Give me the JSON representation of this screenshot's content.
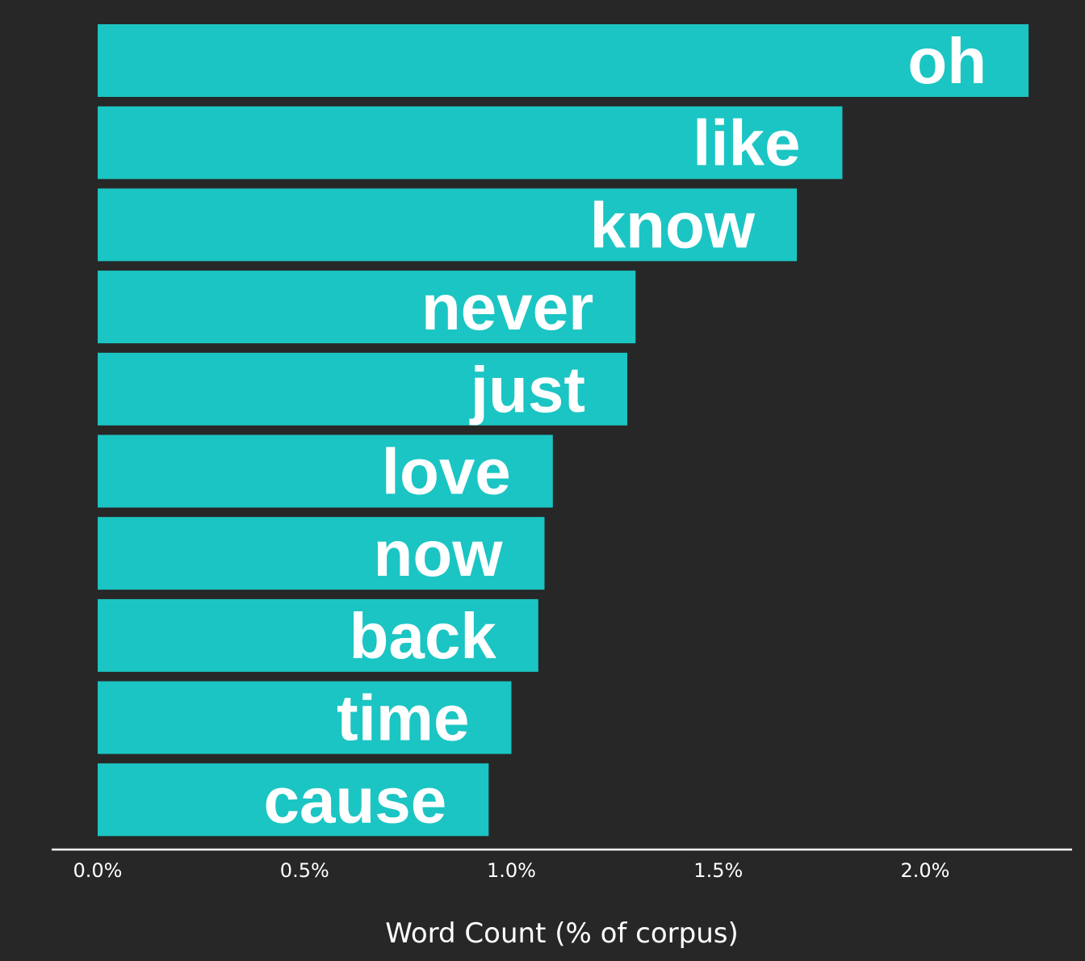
{
  "chart_data": {
    "type": "bar",
    "orientation": "horizontal",
    "categories": [
      "oh",
      "like",
      "know",
      "never",
      "just",
      "love",
      "now",
      "back",
      "time",
      "cause"
    ],
    "values": [
      2.25,
      1.8,
      1.69,
      1.3,
      1.28,
      1.1,
      1.08,
      1.065,
      1.0,
      0.945
    ],
    "value_unit": "% of corpus",
    "xlabel": "Word Count (% of corpus)",
    "ylabel": "",
    "xlim": [
      0,
      2.36
    ],
    "xticks": [
      0.0,
      0.5,
      1.0,
      1.5,
      2.0
    ],
    "xtick_labels": [
      "0.0%",
      "0.5%",
      "1.0%",
      "1.5%",
      "2.0%"
    ],
    "grid": false,
    "legend": "none",
    "labels_inside_bars": true
  },
  "colors": {
    "background": "#272727",
    "bar": "#1bc5c3",
    "text": "#ffffff",
    "axis_line": "#ffffff"
  }
}
